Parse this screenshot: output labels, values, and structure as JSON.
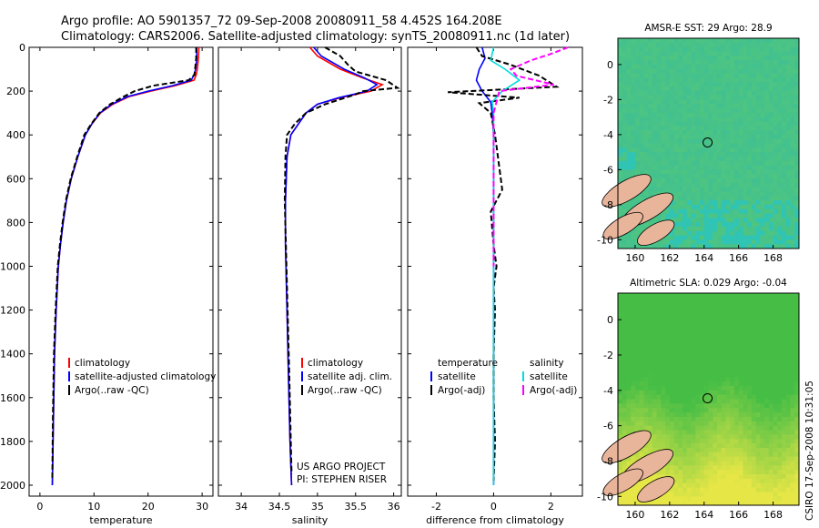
{
  "title_line1": "Argo profile: AO 5901357_72 09-Sep-2008 20080911_58 4.452S 164.208E",
  "title_line2": "Climatology: CARS2006. Satellite-adjusted climatology: synTS_20080911.nc (1d later)",
  "side_label": "CSIRO 17-Sep-2008 10:31:05",
  "chart_data": [
    {
      "type": "line",
      "id": "temperature",
      "xlabel": "temperature",
      "xlim": [
        -2,
        32
      ],
      "ylim": [
        0,
        2050
      ],
      "xticks": [
        0,
        10,
        20,
        30
      ],
      "yticks": [
        0,
        200,
        400,
        600,
        800,
        1000,
        1200,
        1400,
        1600,
        1800,
        2000
      ],
      "yreversed": true,
      "legend": [
        "climatology",
        "satellite-adjusted climatology",
        "Argo(..raw -QC)"
      ],
      "series": [
        {
          "name": "climatology",
          "color": "#ff0000",
          "style": "solid",
          "x": [
            29.4,
            29.3,
            29.1,
            28.9,
            28.5,
            25.0,
            20.5,
            16.5,
            13.5,
            11.2,
            9.6,
            8.4,
            7.0,
            5.8,
            4.9,
            4.3,
            3.8,
            3.4,
            3.0,
            2.7,
            2.5,
            2.3
          ],
          "y": [
            0,
            50,
            100,
            125,
            150,
            175,
            200,
            225,
            260,
            300,
            350,
            400,
            500,
            600,
            700,
            800,
            900,
            1000,
            1200,
            1400,
            1700,
            2000
          ]
        },
        {
          "name": "satellite-adjusted climatology",
          "color": "#0000ff",
          "style": "solid",
          "x": [
            29.0,
            29.0,
            28.8,
            28.5,
            28.0,
            24.5,
            20.0,
            16.2,
            13.3,
            11.1,
            9.6,
            8.4,
            7.0,
            5.8,
            4.9,
            4.3,
            3.8,
            3.4,
            3.0,
            2.7,
            2.5,
            2.3
          ],
          "y": [
            0,
            50,
            100,
            125,
            150,
            175,
            200,
            225,
            260,
            300,
            350,
            400,
            500,
            600,
            700,
            800,
            900,
            1000,
            1200,
            1400,
            1700,
            2000
          ]
        },
        {
          "name": "Argo(..raw -QC)",
          "color": "#000000",
          "style": "dashed",
          "x": [
            28.9,
            28.9,
            28.7,
            28.6,
            27.5,
            21.0,
            17.5,
            15.5,
            13.0,
            11.0,
            9.5,
            8.2,
            6.9,
            5.7,
            4.8,
            4.2,
            3.7,
            3.3,
            2.9,
            2.6,
            2.4,
            2.3
          ],
          "y": [
            0,
            50,
            100,
            125,
            150,
            175,
            200,
            225,
            260,
            300,
            350,
            400,
            500,
            600,
            700,
            800,
            900,
            1000,
            1200,
            1400,
            1700,
            1980
          ]
        }
      ]
    },
    {
      "type": "line",
      "id": "salinity",
      "xlabel": "salinity",
      "xlim": [
        33.7,
        36.1
      ],
      "ylim": [
        0,
        2050
      ],
      "xticks": [
        34,
        34.5,
        35,
        35.5,
        36
      ],
      "yreversed": true,
      "legend": [
        "climatology",
        "satellite adj. clim.",
        "Argo(..raw -QC)"
      ],
      "annotation": [
        "US ARGO PROJECT",
        "PI: STEPHEN RISER"
      ],
      "series": [
        {
          "name": "climatology",
          "color": "#ff0000",
          "style": "solid",
          "x": [
            34.9,
            35.0,
            35.3,
            35.6,
            35.85,
            35.7,
            35.3,
            35.0,
            34.85,
            34.75,
            34.65,
            34.6,
            34.58,
            34.58,
            34.6,
            34.62,
            34.64,
            34.66
          ],
          "y": [
            0,
            40,
            100,
            140,
            170,
            200,
            230,
            260,
            300,
            350,
            400,
            500,
            700,
            900,
            1200,
            1500,
            1800,
            2000
          ]
        },
        {
          "name": "satellite adj. clim.",
          "color": "#0000ff",
          "style": "solid",
          "x": [
            34.95,
            35.05,
            35.35,
            35.62,
            35.78,
            35.65,
            35.28,
            35.0,
            34.85,
            34.75,
            34.65,
            34.6,
            34.58,
            34.58,
            34.6,
            34.62,
            34.64,
            34.66
          ],
          "y": [
            0,
            40,
            100,
            140,
            170,
            200,
            230,
            260,
            300,
            350,
            400,
            500,
            700,
            900,
            1200,
            1500,
            1800,
            2000
          ]
        },
        {
          "name": "Argo(..raw -QC)",
          "color": "#000000",
          "style": "dashed",
          "x": [
            35.1,
            35.3,
            35.4,
            35.5,
            35.9,
            36.05,
            35.6,
            35.5,
            35.1,
            34.85,
            34.7,
            34.6,
            34.58,
            34.57,
            34.6,
            34.63,
            34.66
          ],
          "y": [
            0,
            40,
            80,
            110,
            150,
            185,
            200,
            215,
            260,
            300,
            350,
            400,
            500,
            700,
            1100,
            1500,
            1950
          ]
        }
      ]
    },
    {
      "type": "line",
      "id": "difference",
      "xlabel": "difference from climatology",
      "xlim": [
        -3,
        3.1
      ],
      "ylim": [
        0,
        2050
      ],
      "xticks": [
        -2,
        0,
        2
      ],
      "yreversed": true,
      "legend_left": [
        "temperature",
        "satellite",
        "Argo(-adj)"
      ],
      "legend_right": [
        "salinity",
        "satellite",
        "Argo(-adj)"
      ],
      "series": [
        {
          "name": "temperature satellite",
          "color": "#0000ff",
          "style": "solid",
          "x": [
            -0.4,
            -0.3,
            -0.5,
            -0.6,
            -0.4,
            -0.1,
            -0.05,
            0,
            0,
            0
          ],
          "y": [
            0,
            50,
            100,
            150,
            200,
            250,
            300,
            400,
            800,
            2000
          ]
        },
        {
          "name": "temperature Argo(-adj)",
          "color": "#000000",
          "style": "dashed",
          "x": [
            -0.6,
            -0.4,
            0.6,
            1.6,
            2.2,
            -1.6,
            0.9,
            -0.5,
            -0.1,
            0.05,
            0.3,
            -0.1,
            0,
            0.1,
            0,
            0.05,
            0,
            0,
            0.05,
            0
          ],
          "y": [
            0,
            40,
            80,
            130,
            180,
            205,
            230,
            255,
            300,
            400,
            650,
            750,
            900,
            1000,
            1100,
            1200,
            1400,
            1600,
            1800,
            1980
          ]
        },
        {
          "name": "salinity satellite",
          "color": "#00dddd",
          "style": "solid",
          "x": [
            0,
            -0.1,
            0.4,
            0.9,
            0.3,
            -0.05,
            0,
            0,
            0,
            0
          ],
          "y": [
            0,
            60,
            100,
            150,
            200,
            250,
            300,
            400,
            800,
            2000
          ]
        },
        {
          "name": "salinity Argo(-adj)",
          "color": "#ff00ff",
          "style": "dashed",
          "x": [
            2.6,
            2.0,
            1.3,
            0.6,
            0.8,
            2.1,
            0.2,
            0.1,
            0,
            0,
            0
          ],
          "y": [
            0,
            30,
            60,
            100,
            130,
            170,
            200,
            250,
            300,
            500,
            1000
          ]
        }
      ]
    },
    {
      "type": "heatmap",
      "id": "sst-map",
      "title": "AMSR-E SST: 29 Argo: 28.9",
      "xticks": [
        160,
        162,
        164,
        166,
        168
      ],
      "yticks": [
        0,
        -2,
        -4,
        -6,
        -8,
        -10
      ],
      "xlim": [
        159,
        169.5
      ],
      "ylim": [
        -10.5,
        1.5
      ],
      "marker": [
        164.2,
        -4.45
      ]
    },
    {
      "type": "heatmap",
      "id": "sla-map",
      "title": "Altimetric SLA: 0.029 Argo: -0.04",
      "xticks": [
        160,
        162,
        164,
        166,
        168
      ],
      "yticks": [
        0,
        -2,
        -4,
        -6,
        -8,
        -10
      ],
      "xlim": [
        159,
        169.5
      ],
      "ylim": [
        -10.5,
        1.5
      ],
      "marker": [
        164.2,
        -4.45
      ]
    }
  ],
  "colors": {
    "red": "#ff0000",
    "blue": "#0000ff",
    "black": "#000000",
    "cyan": "#00dddd",
    "magenta": "#ff00ff",
    "land": "#e8b49a"
  }
}
